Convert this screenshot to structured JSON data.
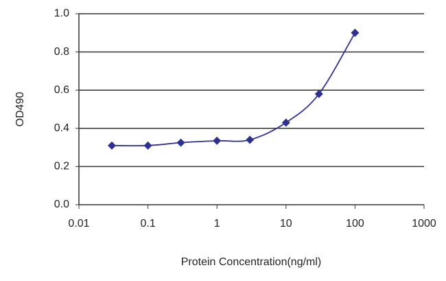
{
  "chart_data": {
    "type": "line",
    "x_label": "Protein Concentration(ng/ml)",
    "y_label": "OD490",
    "x": [
      0.03,
      0.1,
      0.3,
      1,
      3,
      10,
      30,
      100
    ],
    "values": [
      0.31,
      0.31,
      0.325,
      0.335,
      0.34,
      0.43,
      0.58,
      0.9
    ],
    "color": "#2e3192",
    "x_log": true,
    "xlim": [
      0.01,
      1000
    ],
    "xticks": [
      0.01,
      0.1,
      1,
      10,
      100,
      1000
    ],
    "ylim": [
      0,
      1
    ],
    "yticks": [
      {
        "value": 0,
        "label": "0.0"
      },
      0.2,
      0.4,
      0.6,
      0.8,
      {
        "value": 1,
        "label": "1.0"
      }
    ],
    "grid": true
  }
}
